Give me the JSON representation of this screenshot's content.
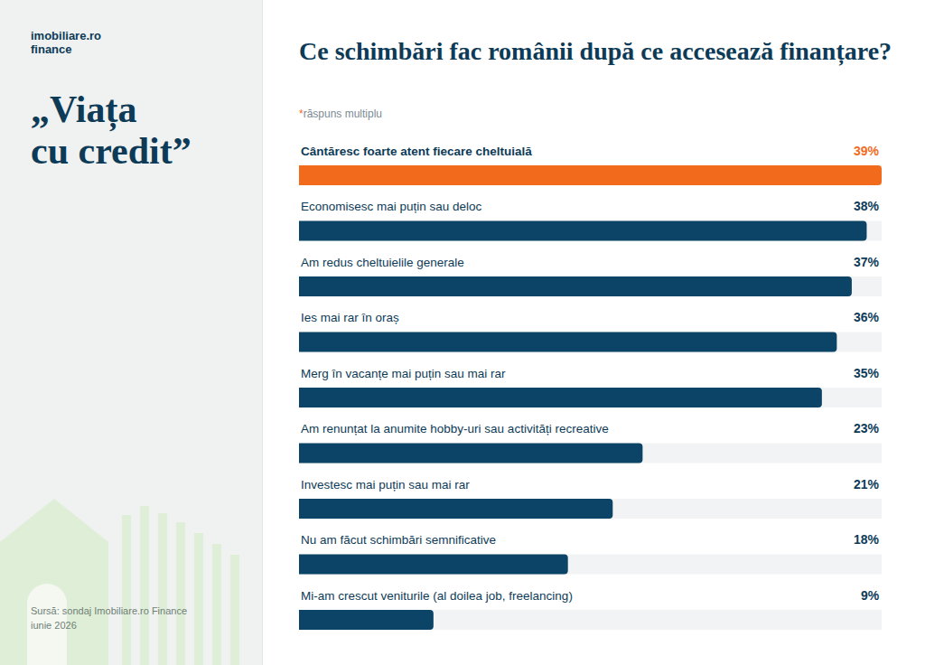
{
  "header": {
    "logo": [
      "imobiliare.ro",
      "finance"
    ],
    "left_title": [
      "„Viața",
      "cu credit”"
    ],
    "source": [
      "Sursă: sondaj Imobiliare.ro Finance",
      "iunie 2026"
    ]
  },
  "chart_data": {
    "type": "bar",
    "orientation": "horizontal",
    "title": "Ce schimbări fac românii după ce accesează finanțare?",
    "subtitle": "*răspuns multiplu",
    "categories": [
      "Cântăresc foarte atent fiecare cheltuială",
      "Economisesc mai puțin sau deloc",
      "Am redus cheltuielile generale",
      "Ies mai rar în oraș",
      "Merg în vacanțe mai puțin sau mai rar",
      "Am renunțat la anumite hobby-uri sau activități recreative",
      "Investesc mai puțin sau mai rar",
      "Nu am făcut schimbări semnificative",
      "Mi-am crescut veniturile (al doilea job, freelancing)"
    ],
    "values": [
      39,
      38,
      37,
      36,
      35,
      23,
      21,
      18,
      9
    ],
    "value_labels": [
      "39%",
      "38%",
      "37%",
      "36%",
      "35%",
      "23%",
      "21%",
      "18%",
      "9%"
    ],
    "colors": [
      "#f26b1d",
      "#0b4466",
      "#0b4466",
      "#0b4466",
      "#0b4466",
      "#0b4466",
      "#0b4466",
      "#0b4466",
      "#0b4466"
    ],
    "xlim": [
      0,
      39
    ],
    "data_labels": true,
    "tick_labels": false,
    "grid": false
  }
}
